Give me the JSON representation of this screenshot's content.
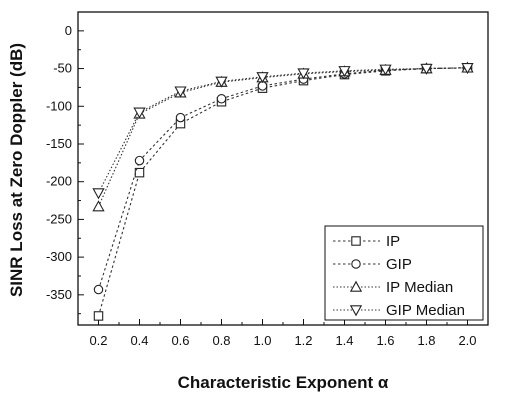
{
  "chart_data": {
    "type": "line",
    "title": "",
    "xlabel": "Characteristic Exponent α",
    "ylabel": "SINR Loss at Zero Doppler (dB)",
    "x": [
      0.2,
      0.4,
      0.6,
      0.8,
      1.0,
      1.2,
      1.4,
      1.6,
      1.8,
      2.0
    ],
    "xlim": [
      0.1,
      2.1
    ],
    "ylim": [
      -390,
      25
    ],
    "xticks": [
      "0.2",
      "0.4",
      "0.6",
      "0.8",
      "1.0",
      "1.2",
      "1.4",
      "1.6",
      "1.8",
      "2.0"
    ],
    "yticks": [
      "0",
      "-50",
      "-100",
      "-150",
      "-200",
      "-250",
      "-300",
      "-350"
    ],
    "legend_position": "lower-right",
    "grid": false,
    "series": [
      {
        "name": "IP",
        "marker": "square",
        "values": [
          -378,
          -188,
          -123,
          -94,
          -76,
          -66,
          -58,
          -53,
          -50,
          -49
        ]
      },
      {
        "name": "GIP",
        "marker": "circle",
        "values": [
          -343,
          -172,
          -115,
          -90,
          -73,
          -64,
          -57,
          -52,
          -50,
          -49
        ]
      },
      {
        "name": "IP Median",
        "marker": "triangle-up",
        "values": [
          -233,
          -110,
          -82,
          -68,
          -62,
          -57,
          -54,
          -52,
          -50,
          -49
        ]
      },
      {
        "name": "GIP Median",
        "marker": "triangle-down",
        "values": [
          -215,
          -108,
          -80,
          -67,
          -61,
          -56,
          -53,
          -51,
          -50,
          -49
        ]
      }
    ]
  }
}
